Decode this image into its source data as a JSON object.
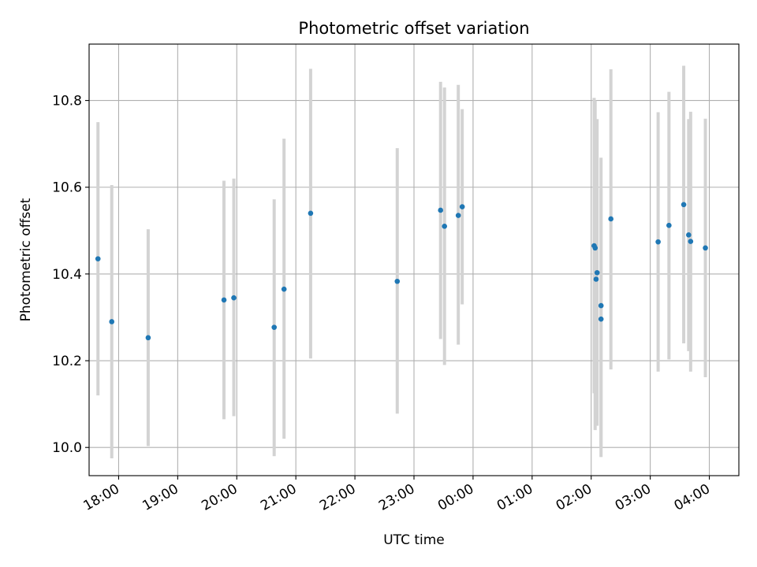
{
  "chart_data": {
    "type": "scatter",
    "title": "Photometric offset variation",
    "xlabel": "UTC time",
    "ylabel": "Photometric offset",
    "x_axis_type": "time",
    "start_date": "day1",
    "xlim": [
      "17:30",
      "04:30"
    ],
    "ylim": [
      9.935,
      10.93
    ],
    "x_ticks": [
      "18:00",
      "19:00",
      "20:00",
      "21:00",
      "22:00",
      "23:00",
      "00:00",
      "01:00",
      "02:00",
      "03:00",
      "04:00"
    ],
    "y_ticks": [
      "10.0",
      "10.2",
      "10.4",
      "10.6",
      "10.8"
    ],
    "grid": true,
    "point_color": "#1f77b4",
    "errorbar_color": "#d3d3d3",
    "points": [
      {
        "t": "17:39",
        "y": 10.435,
        "lo": 10.12,
        "hi": 10.75
      },
      {
        "t": "17:53",
        "y": 10.29,
        "lo": 9.975,
        "hi": 10.605
      },
      {
        "t": "18:30",
        "y": 10.253,
        "lo": 10.003,
        "hi": 10.503
      },
      {
        "t": "19:47",
        "y": 10.34,
        "lo": 10.065,
        "hi": 10.615
      },
      {
        "t": "19:57",
        "y": 10.345,
        "lo": 10.072,
        "hi": 10.62
      },
      {
        "t": "20:38",
        "y": 10.277,
        "lo": 9.98,
        "hi": 10.572
      },
      {
        "t": "20:48",
        "y": 10.365,
        "lo": 10.02,
        "hi": 10.712
      },
      {
        "t": "21:15",
        "y": 10.54,
        "lo": 10.205,
        "hi": 10.873
      },
      {
        "t": "22:43",
        "y": 10.383,
        "lo": 10.078,
        "hi": 10.69
      },
      {
        "t": "23:27",
        "y": 10.547,
        "lo": 10.25,
        "hi": 10.843
      },
      {
        "t": "23:31",
        "y": 10.51,
        "lo": 10.19,
        "hi": 10.83
      },
      {
        "t": "23:45",
        "y": 10.535,
        "lo": 10.237,
        "hi": 10.836
      },
      {
        "t": "23:49",
        "y": 10.555,
        "lo": 10.33,
        "hi": 10.78
      },
      {
        "t": "02:03",
        "y": 10.465,
        "lo": 10.125,
        "hi": 10.806
      },
      {
        "t": "02:04",
        "y": 10.46,
        "lo": 10.04,
        "hi": 10.8
      },
      {
        "t": "02:05",
        "y": 10.388,
        "lo": 10.075,
        "hi": 10.7
      },
      {
        "t": "02:06",
        "y": 10.403,
        "lo": 10.05,
        "hi": 10.757
      },
      {
        "t": "02:10",
        "y": 10.327,
        "lo": 9.978,
        "hi": 10.668
      },
      {
        "t": "02:10",
        "y": 10.296,
        "lo": 10.0,
        "hi": 10.595
      },
      {
        "t": "02:20",
        "y": 10.527,
        "lo": 10.18,
        "hi": 10.872
      },
      {
        "t": "03:08",
        "y": 10.474,
        "lo": 10.175,
        "hi": 10.773
      },
      {
        "t": "03:19",
        "y": 10.512,
        "lo": 10.203,
        "hi": 10.82
      },
      {
        "t": "03:34",
        "y": 10.56,
        "lo": 10.24,
        "hi": 10.88
      },
      {
        "t": "03:39",
        "y": 10.49,
        "lo": 10.222,
        "hi": 10.757
      },
      {
        "t": "03:41",
        "y": 10.475,
        "lo": 10.175,
        "hi": 10.774
      },
      {
        "t": "03:56",
        "y": 10.46,
        "lo": 10.162,
        "hi": 10.758
      }
    ]
  }
}
